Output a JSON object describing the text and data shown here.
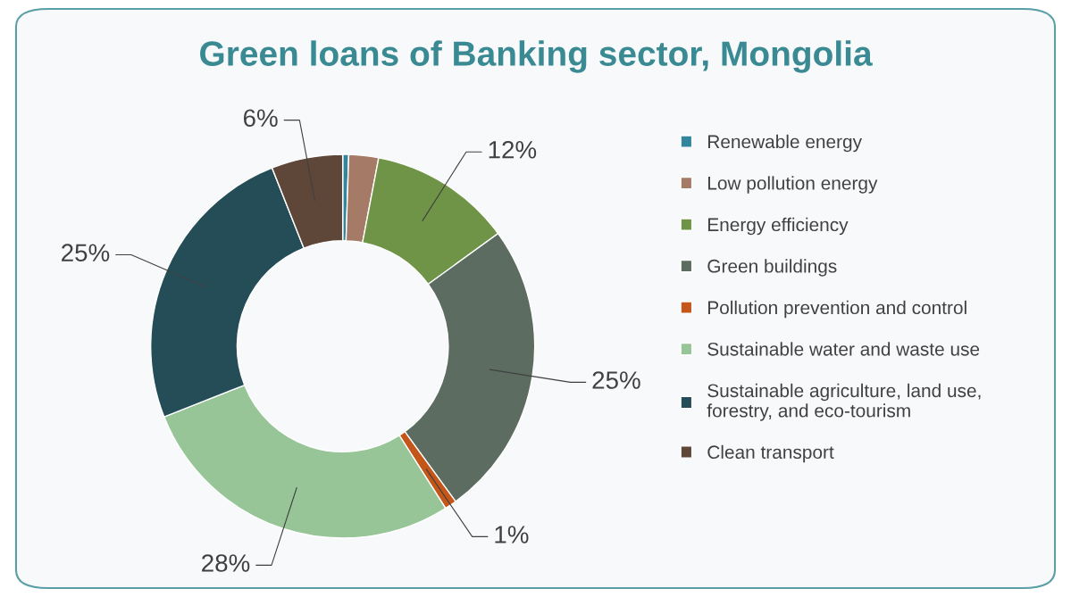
{
  "chart_data": {
    "type": "donut",
    "title": "Green loans of Banking sector, Mongolia",
    "categories": [
      "Renewable energy",
      "Low pollution energy",
      "Energy efficiency",
      "Green buildings",
      "Pollution prevention and control",
      "Sustainable water and waste use",
      "Sustainable agriculture, land use,\nforestry, and eco-tourism",
      "Clean transport"
    ],
    "values": [
      0.5,
      2.5,
      12,
      25,
      1,
      28,
      25,
      6
    ],
    "value_labels": [
      null,
      null,
      "12%",
      "25%",
      "1%",
      "28%",
      "25%",
      "6%"
    ],
    "colors": [
      "#31859c",
      "#a57b68",
      "#6f9447",
      "#5c6c60",
      "#c4561a",
      "#97c597",
      "#254d57",
      "#5e4738"
    ],
    "legend": "right"
  }
}
